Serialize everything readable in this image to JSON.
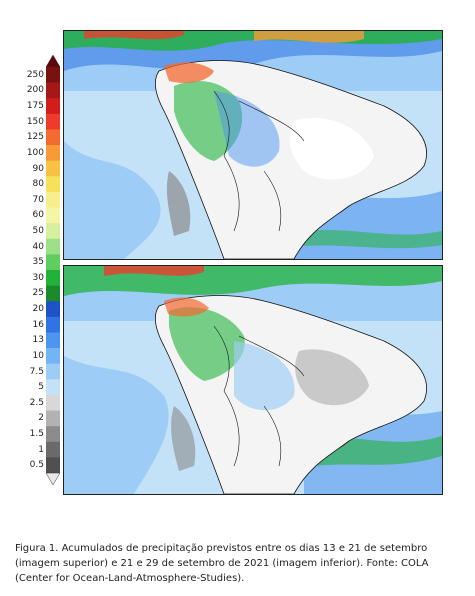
{
  "colorbar": {
    "labels": [
      "250",
      "200",
      "175",
      "150",
      "125",
      "100",
      "90",
      "80",
      "70",
      "60",
      "50",
      "40",
      "35",
      "30",
      "25",
      "20",
      "16",
      "13",
      "10",
      "7.5",
      "5",
      "2.5",
      "2",
      "1.5",
      "1",
      "0.5"
    ],
    "colors": [
      "#7a1010",
      "#a51818",
      "#d41c1c",
      "#ee3c2c",
      "#f46a30",
      "#f79a3a",
      "#f9c245",
      "#f8e15a",
      "#f7ef8e",
      "#f3f6a6",
      "#d6f0a0",
      "#9ee089",
      "#5fcd5f",
      "#22b23a",
      "#1a8a2a",
      "#1e52c8",
      "#2f74e4",
      "#4d95ef",
      "#74b4f5",
      "#9dcdf6",
      "#c3e1f7",
      "#d8d8d8",
      "#b2b2b2",
      "#8c8c8c",
      "#6a6a6a",
      "#505050"
    ],
    "top_arrow_color": "#5e0808",
    "bottom_arrow_color": "#e8e8e8"
  },
  "maps": [
    {
      "name": "map-13-21-setembro"
    },
    {
      "name": "map-21-29-setembro"
    }
  ],
  "caption": {
    "text": "Figura 1. Acumulados de precipitação previstos entre os dias 13 e 21 de setembro (imagem superior) e 21 e 29 de setembro de 2021 (imagem inferior). Fonte: COLA (Center for Ocean-Land-Atmosphere-Studies)."
  }
}
